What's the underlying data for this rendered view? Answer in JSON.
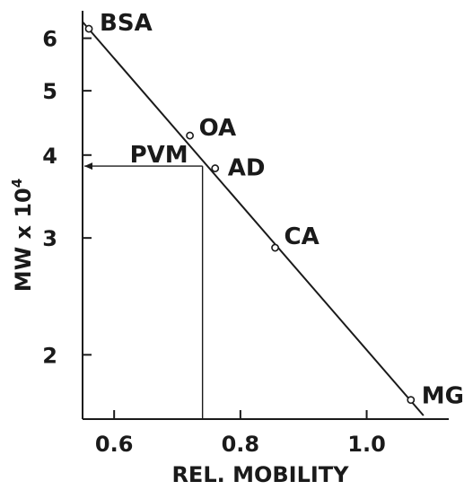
{
  "chart_data": {
    "type": "scatter",
    "title": "",
    "xlabel": "REL. MOBILITY",
    "ylabel": "MW x 10",
    "ylabel_superscript": "4",
    "y_scale": "log",
    "xlim": [
      0.55,
      1.13
    ],
    "ylim": [
      1.6,
      6.6
    ],
    "x_ticks": [
      {
        "value": 0.6,
        "label": "0.6"
      },
      {
        "value": 0.8,
        "label": "0.8"
      },
      {
        "value": 1.0,
        "label": "1.0"
      }
    ],
    "y_ticks": [
      {
        "value": 2,
        "label": "2"
      },
      {
        "value": 3,
        "label": "3"
      },
      {
        "value": 4,
        "label": "4"
      },
      {
        "value": 5,
        "label": "5"
      },
      {
        "value": 6,
        "label": "6"
      }
    ],
    "points": [
      {
        "label": "BSA",
        "x": 0.56,
        "y": 6.2
      },
      {
        "label": "OA",
        "x": 0.72,
        "y": 4.28
      },
      {
        "label": "AD",
        "x": 0.76,
        "y": 3.82
      },
      {
        "label": "CA",
        "x": 0.855,
        "y": 2.9
      },
      {
        "label": "MG",
        "x": 1.07,
        "y": 1.71
      }
    ],
    "fit_line": {
      "x": [
        0.55,
        1.09
      ],
      "y": [
        6.35,
        1.62
      ]
    },
    "marker": {
      "label": "PVM",
      "x": 0.74,
      "y": 3.85
    }
  }
}
